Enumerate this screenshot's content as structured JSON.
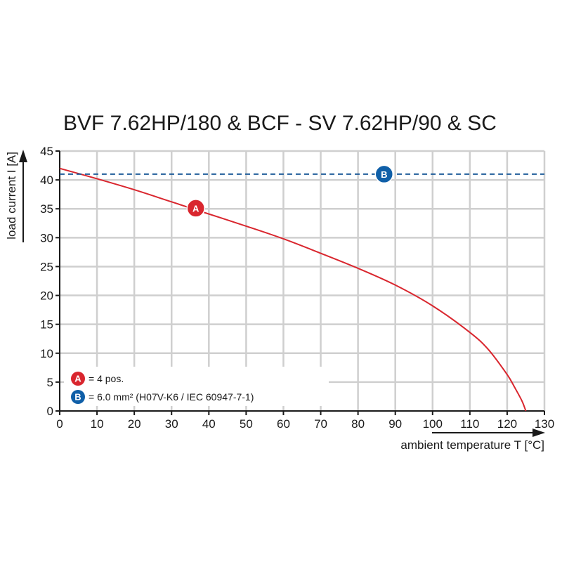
{
  "chart_data": {
    "type": "line",
    "title": "BVF 7.62HP/180 & BCF - SV 7.62HP/90 & SC",
    "xlabel": "ambient temperature T [°C]",
    "ylabel": "load current I [A]",
    "xlim": [
      0,
      130
    ],
    "ylim": [
      0,
      45
    ],
    "xticks": [
      0,
      10,
      20,
      30,
      40,
      50,
      60,
      70,
      80,
      90,
      100,
      110,
      120,
      130
    ],
    "yticks": [
      0,
      5,
      10,
      15,
      20,
      25,
      30,
      35,
      40,
      45
    ],
    "grid": true,
    "series": [
      {
        "name": "A",
        "color": "#d9262e",
        "style": "solid",
        "x": [
          0,
          10,
          20,
          30,
          40,
          50,
          60,
          70,
          80,
          90,
          100,
          110,
          115,
          120,
          122,
          124,
          125
        ],
        "y": [
          42,
          40.2,
          38.3,
          36.2,
          34.1,
          32.0,
          29.8,
          27.3,
          24.7,
          21.8,
          18.2,
          13.6,
          10.6,
          6.3,
          4.1,
          1.7,
          0
        ]
      },
      {
        "name": "B",
        "color": "#1e5c99",
        "style": "dashed",
        "x": [
          0,
          130
        ],
        "y": [
          41,
          41
        ]
      }
    ],
    "markers": [
      {
        "label": "A",
        "x": 36.5,
        "y": 35.1,
        "color": "#d9262e"
      },
      {
        "label": "B",
        "x": 87,
        "y": 41,
        "color": "#0f5fa8"
      }
    ],
    "legend": {
      "placement": "bottom-left",
      "items": [
        {
          "marker": "A",
          "text": "= 4 pos.",
          "color": "#d9262e"
        },
        {
          "marker": "B",
          "text": "= 6.0 mm² (H07V-K6 / IEC 60947-7-1)",
          "color": "#0f5fa8"
        }
      ]
    }
  }
}
